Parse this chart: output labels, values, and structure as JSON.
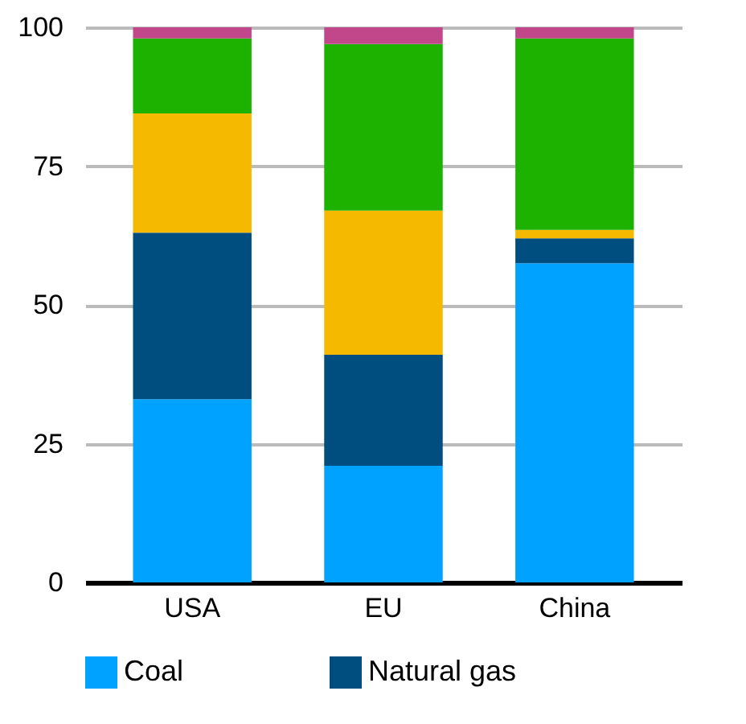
{
  "chart_data": {
    "type": "bar",
    "stacked": true,
    "categories": [
      "USA",
      "EU",
      "China"
    ],
    "series": [
      {
        "name": "Coal",
        "color": "#00a2ff",
        "values": [
          33,
          21,
          57.5
        ]
      },
      {
        "name": "Natural gas",
        "color": "#004d80",
        "values": [
          30,
          20,
          4.5
        ]
      },
      {
        "color": "#f5b900",
        "values": [
          21.5,
          26,
          1.5
        ]
      },
      {
        "color": "#1db100",
        "values": [
          13.5,
          30,
          34.5
        ]
      },
      {
        "color": "#c2478a",
        "values": [
          2,
          3,
          2
        ]
      }
    ],
    "ylim": [
      0,
      100
    ],
    "yticks": [
      0,
      25,
      50,
      75,
      100
    ],
    "grid": "y",
    "legend": "bottom"
  }
}
